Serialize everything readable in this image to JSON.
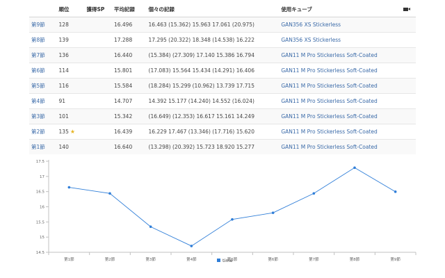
{
  "table": {
    "headers": {
      "rank": "順位",
      "sp": "獲得SP",
      "avg": "平均記録",
      "times": "個々の記録",
      "cube": "使用キューブ"
    },
    "rows": [
      {
        "round": "第9節",
        "rank": "128",
        "avg": "16.496",
        "times": "16.463 (15.362) 15.963 17.061 (20.975)",
        "cube": "GAN356 XS Stickerless"
      },
      {
        "round": "第8節",
        "rank": "139",
        "avg": "17.288",
        "times": "17.295 (20.322) 18.348 (14.538) 16.222",
        "cube": "GAN356 XS Stickerless"
      },
      {
        "round": "第7節",
        "rank": "136",
        "avg": "16.440",
        "times": "(15.384) (27.309) 17.140 15.386 16.794",
        "cube": "GAN11 M Pro Stickerless Soft-Coated"
      },
      {
        "round": "第6節",
        "rank": "114",
        "avg": "15.801",
        "times": "(17.083) 15.564 15.434 (14.291) 16.406",
        "cube": "GAN11 M Pro Stickerless Soft-Coated"
      },
      {
        "round": "第5節",
        "rank": "116",
        "avg": "15.584",
        "times": "(18.284) 15.299 (10.962) 13.739 17.715",
        "cube": "GAN11 M Pro Stickerless Soft-Coated"
      },
      {
        "round": "第4節",
        "rank": "91",
        "avg": "14.707",
        "times": "14.392 15.177 (14.240) 14.552 (16.024)",
        "cube": "GAN11 M Pro Stickerless Soft-Coated"
      },
      {
        "round": "第3節",
        "rank": "101",
        "avg": "15.342",
        "times": "(16.649) (12.353) 16.617 15.161 14.249",
        "cube": "GAN11 M Pro Stickerless Soft-Coated"
      },
      {
        "round": "第2節",
        "rank": "135",
        "avg": "16.439",
        "times": "16.229 17.467 (13.346) (17.716) 15.620",
        "cube": "GAN11 M Pro Stickerless Soft-Coated",
        "starred": true
      },
      {
        "round": "第1節",
        "rank": "140",
        "avg": "16.640",
        "times": "(13.298) (20.392) 15.723 18.920 15.277",
        "cube": "GAN11 M Pro Stickerless Soft-Coated"
      }
    ],
    "icons": {
      "video": "video-camera-icon",
      "star": "star-icon"
    },
    "colors": {
      "link": "#3a6aa8",
      "star": "#e6b422"
    }
  },
  "chart_data": {
    "type": "line",
    "categories": [
      "第1節",
      "第2節",
      "第3節",
      "第4節",
      "第5節",
      "第6節",
      "第7節",
      "第8節",
      "第9節"
    ],
    "series": [
      {
        "name": "time",
        "values": [
          16.64,
          16.439,
          15.342,
          14.707,
          15.584,
          15.801,
          16.44,
          17.288,
          16.496
        ],
        "color": "#2f7ed8"
      }
    ],
    "yticks": [
      "14.5",
      "15",
      "15.5",
      "16",
      "16.5",
      "17",
      "17.5"
    ],
    "ylim": [
      14.5,
      17.5
    ],
    "legend_position": "bottom-center",
    "grid": false
  }
}
